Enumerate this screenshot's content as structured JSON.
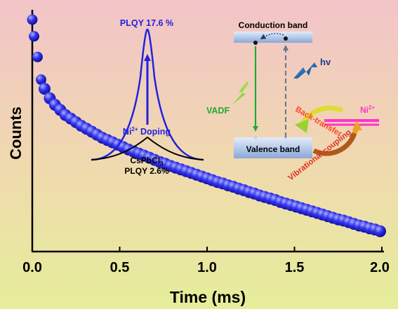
{
  "chart_data": {
    "type": "scatter",
    "xlabel": "Time (ms)",
    "ylabel": "Counts",
    "xlim": [
      0,
      2
    ],
    "x_ticks": [
      "0.0",
      "0.5",
      "1.0",
      "1.5",
      "2.0"
    ],
    "y_scale": "log",
    "y_tick_labels": "none",
    "grid": false,
    "marker_color": "#2222dd",
    "background_gradient": [
      "#f2c4c8",
      "#f0d8b0",
      "#e6ee9a"
    ],
    "series": [
      {
        "points": [
          [
            0.0,
            1.0
          ],
          [
            0.01,
            0.93
          ],
          [
            0.03,
            0.85
          ],
          [
            0.05,
            0.77
          ],
          [
            0.07,
            0.74
          ],
          [
            0.1,
            0.71
          ],
          [
            0.13,
            0.69
          ],
          [
            0.16,
            0.675
          ],
          [
            0.19,
            0.66
          ],
          [
            0.22,
            0.65
          ],
          [
            0.25,
            0.64
          ],
          [
            0.28,
            0.63
          ],
          [
            0.31,
            0.622
          ],
          [
            0.34,
            0.614
          ],
          [
            0.37,
            0.606
          ],
          [
            0.4,
            0.598
          ],
          [
            0.43,
            0.592
          ],
          [
            0.46,
            0.586
          ],
          [
            0.49,
            0.58
          ],
          [
            0.52,
            0.574
          ],
          [
            0.55,
            0.568
          ],
          [
            0.58,
            0.563
          ],
          [
            0.61,
            0.558
          ],
          [
            0.64,
            0.553
          ],
          [
            0.67,
            0.548
          ],
          [
            0.7,
            0.543
          ],
          [
            0.73,
            0.538
          ],
          [
            0.76,
            0.534
          ],
          [
            0.79,
            0.529
          ],
          [
            0.82,
            0.525
          ],
          [
            0.85,
            0.521
          ],
          [
            0.88,
            0.517
          ],
          [
            0.91,
            0.513
          ],
          [
            0.94,
            0.509
          ],
          [
            0.97,
            0.505
          ],
          [
            1.0,
            0.501
          ],
          [
            1.03,
            0.497
          ],
          [
            1.06,
            0.493
          ],
          [
            1.09,
            0.49
          ],
          [
            1.12,
            0.486
          ],
          [
            1.15,
            0.483
          ],
          [
            1.18,
            0.479
          ],
          [
            1.21,
            0.476
          ],
          [
            1.24,
            0.472
          ],
          [
            1.27,
            0.469
          ],
          [
            1.3,
            0.465
          ],
          [
            1.33,
            0.462
          ],
          [
            1.36,
            0.459
          ],
          [
            1.39,
            0.456
          ],
          [
            1.42,
            0.452
          ],
          [
            1.45,
            0.449
          ],
          [
            1.48,
            0.446
          ],
          [
            1.51,
            0.443
          ],
          [
            1.54,
            0.44
          ],
          [
            1.57,
            0.437
          ],
          [
            1.6,
            0.434
          ],
          [
            1.63,
            0.431
          ],
          [
            1.66,
            0.428
          ],
          [
            1.69,
            0.425
          ],
          [
            1.72,
            0.422
          ],
          [
            1.75,
            0.419
          ],
          [
            1.78,
            0.417
          ],
          [
            1.81,
            0.414
          ],
          [
            1.84,
            0.411
          ],
          [
            1.87,
            0.408
          ],
          [
            1.9,
            0.406
          ],
          [
            1.93,
            0.403
          ],
          [
            1.96,
            0.401
          ],
          [
            1.99,
            0.398
          ]
        ]
      }
    ]
  },
  "inset_spectrum": {
    "peak_label": "PLQY 17.6 %",
    "doping_label": "Ni",
    "doping_sup": "2+",
    "doping_suffix": " Doping",
    "host_label": "CsPbCl",
    "host_sub": "3",
    "host_plqy": "PLQY 2.6%",
    "doped_curve_color": "#2222dd",
    "host_curve_color": "#000000"
  },
  "inset_band": {
    "conduction_label": "Conduction band",
    "valence_label": "Valence band",
    "excitation_label": "hv",
    "emission_label": "VADF",
    "backtransfer_label": "Back-transfer",
    "coupling_label": "Vibrational coupling",
    "ion_label": "Ni",
    "ion_sup": "2+",
    "emission_color": "#22aa33",
    "ion_level_color": "#ff33cc"
  }
}
